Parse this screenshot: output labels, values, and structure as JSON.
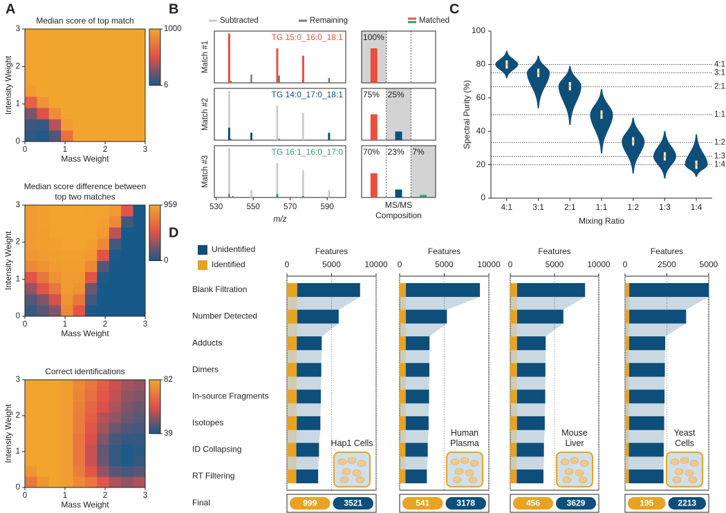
{
  "chart_data": [
    {
      "type": "heatmap",
      "panel": "A",
      "title": "Median score of top match",
      "xlabel": "Mass Weight",
      "ylabel": "Intensity Weight",
      "xlim": [
        0,
        3
      ],
      "ylim": [
        0,
        3
      ],
      "xticks": [
        0,
        1,
        2,
        3
      ],
      "yticks": [
        0,
        1,
        2,
        3
      ],
      "clim": [
        6,
        1000
      ],
      "cticks": [
        6,
        1000
      ],
      "colormap": [
        "#175a8a",
        "#e0504a",
        "#f2a52e"
      ],
      "z": [
        [
          60,
          30,
          150,
          700,
          1000,
          1000,
          1000,
          1000,
          1000,
          1000
        ],
        [
          100,
          80,
          400,
          950,
          1000,
          1000,
          1000,
          1000,
          1000,
          1000
        ],
        [
          250,
          500,
          850,
          1000,
          1000,
          1000,
          1000,
          1000,
          1000,
          1000
        ],
        [
          600,
          900,
          1000,
          1000,
          1000,
          1000,
          1000,
          1000,
          1000,
          1000
        ],
        [
          950,
          1000,
          1000,
          1000,
          1000,
          1000,
          1000,
          1000,
          1000,
          1000
        ],
        [
          1000,
          1000,
          1000,
          1000,
          1000,
          1000,
          1000,
          1000,
          1000,
          1000
        ],
        [
          1000,
          1000,
          1000,
          1000,
          1000,
          1000,
          1000,
          1000,
          1000,
          1000
        ],
        [
          1000,
          1000,
          1000,
          1000,
          1000,
          1000,
          1000,
          1000,
          1000,
          1000
        ],
        [
          1000,
          1000,
          1000,
          1000,
          1000,
          1000,
          1000,
          1000,
          1000,
          1000
        ],
        [
          1000,
          1000,
          1000,
          1000,
          1000,
          1000,
          1000,
          1000,
          1000,
          1000
        ]
      ]
    },
    {
      "type": "heatmap",
      "title": "Median score difference between top two matches",
      "xlabel": "Mass Weight",
      "ylabel": "Intensity Weight",
      "xlim": [
        0,
        3
      ],
      "ylim": [
        0,
        3
      ],
      "xticks": [
        0,
        1,
        2,
        3
      ],
      "yticks": [
        0,
        1,
        2,
        3
      ],
      "clim": [
        0,
        959
      ],
      "cticks": [
        0,
        959
      ],
      "colormap": [
        "#175a8a",
        "#e0504a",
        "#f2a52e"
      ],
      "z": [
        [
          80,
          150,
          250,
          800,
          500,
          20,
          0,
          0,
          0,
          0
        ],
        [
          150,
          250,
          450,
          850,
          700,
          100,
          0,
          0,
          0,
          0
        ],
        [
          300,
          500,
          700,
          900,
          850,
          200,
          0,
          0,
          0,
          0
        ],
        [
          500,
          700,
          850,
          900,
          900,
          500,
          20,
          0,
          0,
          0
        ],
        [
          800,
          850,
          900,
          920,
          920,
          800,
          150,
          0,
          0,
          0
        ],
        [
          880,
          900,
          920,
          930,
          930,
          900,
          500,
          10,
          0,
          0
        ],
        [
          900,
          920,
          930,
          940,
          940,
          930,
          800,
          100,
          0,
          0
        ],
        [
          900,
          920,
          940,
          950,
          950,
          940,
          900,
          400,
          0,
          0
        ],
        [
          900,
          930,
          940,
          950,
          950,
          950,
          930,
          800,
          100,
          0
        ],
        [
          900,
          930,
          940,
          950,
          959,
          950,
          950,
          900,
          500,
          0
        ]
      ]
    },
    {
      "type": "heatmap",
      "title": "Correct identifications",
      "xlabel": "Mass Weight",
      "ylabel": "Intensity Weight",
      "xlim": [
        0,
        3
      ],
      "ylim": [
        0,
        3
      ],
      "xticks": [
        0,
        1,
        2,
        3
      ],
      "yticks": [
        0,
        1,
        2,
        3
      ],
      "clim": [
        39,
        82
      ],
      "cticks": [
        39,
        82
      ],
      "colormap": [
        "#175a8a",
        "#e0504a",
        "#f2a52e"
      ],
      "z": [
        [
          70,
          78,
          82,
          80,
          75,
          70,
          62,
          55,
          52,
          55
        ],
        [
          78,
          82,
          82,
          80,
          72,
          62,
          52,
          46,
          44,
          46
        ],
        [
          82,
          82,
          82,
          80,
          70,
          58,
          48,
          42,
          40,
          42
        ],
        [
          82,
          82,
          82,
          80,
          70,
          58,
          47,
          42,
          40,
          41
        ],
        [
          82,
          82,
          82,
          80,
          70,
          60,
          50,
          44,
          42,
          42
        ],
        [
          82,
          82,
          82,
          80,
          72,
          62,
          54,
          48,
          45,
          44
        ],
        [
          82,
          82,
          82,
          80,
          72,
          64,
          56,
          52,
          48,
          46
        ],
        [
          82,
          82,
          82,
          80,
          73,
          66,
          60,
          55,
          50,
          48
        ],
        [
          82,
          82,
          82,
          80,
          74,
          68,
          62,
          57,
          52,
          50
        ],
        [
          82,
          82,
          82,
          80,
          75,
          70,
          64,
          58,
          54,
          52
        ]
      ]
    },
    {
      "type": "spectrum",
      "panel": "B",
      "xlabel": "m/z",
      "xlim": [
        529,
        600
      ],
      "xticks": [
        530,
        550,
        570,
        590
      ],
      "ylim": [
        0,
        105
      ],
      "legend": [
        {
          "name": "Subtracted",
          "color": "#c8c8c8"
        },
        {
          "name": "Remaining",
          "color": "#7a7a7a"
        },
        {
          "name": "Matched",
          "colors": [
            "#e8503f",
            "#2e9a6e"
          ]
        }
      ],
      "composition_label": "MS/MS Composition",
      "composition_ylim": [
        0,
        150
      ],
      "matches": [
        {
          "label": "Match #1",
          "name": "TG 15:0_16:0_18:1",
          "color": "#e8503f",
          "remaining": {
            "x": [
              538,
              549,
              564,
              591
            ],
            "y": [
              4,
              17,
              15,
              10
            ]
          },
          "matched": {
            "x": [
              537,
              563,
              577
            ],
            "y": [
              100,
              70,
              55
            ]
          },
          "composition": {
            "values": [
              100
            ],
            "value_labels": [
              "100%"
            ],
            "colors": [
              "#e8503f"
            ]
          }
        },
        {
          "label": "Match #2",
          "name": "TG 14:0_17:0_18:1",
          "color": "#0e4f79",
          "subtracted": {
            "x": [
              537,
              563,
              577
            ],
            "y": [
              100,
              70,
              55
            ]
          },
          "remaining": {
            "x": [
              538,
              564
            ],
            "y": [
              3,
              3
            ]
          },
          "matched": {
            "x": [
              537,
              549,
              591
            ],
            "y": [
              25,
              15,
              15
            ]
          },
          "composition": {
            "values": [
              75,
              25
            ],
            "value_labels": [
              "75%",
              "25%"
            ],
            "colors": [
              "#e8503f",
              "#0e4f79"
            ]
          }
        },
        {
          "label": "Match #3",
          "name": "TG 16:1_16:0_17:0",
          "color": "#2e9a6e",
          "subtracted": {
            "x": [
              537,
              549,
              563,
              577,
              591
            ],
            "y": [
              100,
              15,
              70,
              55,
              15
            ]
          },
          "remaining": {
            "x": [
              537,
              539
            ],
            "y": [
              8,
              3
            ]
          },
          "matched": {
            "x": [
              563,
              577
            ],
            "y": [
              7,
              3
            ]
          },
          "composition": {
            "values": [
              70,
              23,
              7
            ],
            "value_labels": [
              "70%",
              "23%",
              "7%"
            ],
            "colors": [
              "#e8503f",
              "#0e4f79",
              "#2e9a6e"
            ]
          }
        }
      ]
    },
    {
      "type": "violin",
      "panel": "C",
      "ylabel": "Spectral Purity (%)",
      "xlabel": "Mixing Ratio",
      "categories": [
        "4:1",
        "3:1",
        "2:1",
        "1:1",
        "1:2",
        "1:3",
        "1:4"
      ],
      "medians": [
        80,
        75,
        67,
        50,
        34,
        25,
        20
      ],
      "mins": [
        72,
        54,
        44,
        27,
        15,
        12,
        13
      ],
      "maxs": [
        88,
        85,
        79,
        65,
        48,
        40,
        38
      ],
      "ylim": [
        0,
        100
      ],
      "yticks": [
        0,
        20,
        40,
        60,
        80,
        100
      ],
      "color": "#0e4f79",
      "median_color": "#f5c242",
      "ref_lines": [
        {
          "value": 80,
          "label": "4:1"
        },
        {
          "value": 75,
          "label": "3:1"
        },
        {
          "value": 66.7,
          "label": "2:1"
        },
        {
          "value": 50,
          "label": "1:1"
        },
        {
          "value": 33.3,
          "label": "1:2"
        },
        {
          "value": 25,
          "label": "1:3"
        },
        {
          "value": 20,
          "label": "1:4"
        }
      ]
    },
    {
      "type": "bar",
      "panel": "D",
      "orientation": "horizontal",
      "stacked": true,
      "grid": true,
      "categories": [
        "Blank Filtration",
        "Number Detected",
        "Adducts",
        "Dimers",
        "In-source Fragments",
        "Isotopes",
        "ID Collapsing",
        "RT Filtering"
      ],
      "series": [
        {
          "name": "Unidentified",
          "color": "#0d4f7a"
        },
        {
          "name": "Identified",
          "color": "#e8a322"
        }
      ],
      "final_label": "Final",
      "subplots": [
        {
          "xlabel": "Features",
          "sample": "Hap1 Cells",
          "xlim": [
            0,
            10000
          ],
          "xticks": [
            0,
            5000,
            10000
          ],
          "values": [
            [
              7050,
              4650,
              2800,
              2750,
              2700,
              2650,
              2550,
              2450
            ],
            [
              1150,
              1150,
              1100,
              1100,
              1100,
              1100,
              1050,
              1050
            ]
          ],
          "final": [
            999,
            3521
          ]
        },
        {
          "xlabel": "Features",
          "sample": "Human Plasma",
          "xlim": [
            0,
            10000
          ],
          "xticks": [
            0,
            5000,
            10000
          ],
          "values": [
            [
              8300,
              4600,
              2670,
              2650,
              2620,
              2570,
              2500,
              2400
            ],
            [
              700,
              700,
              680,
              680,
              680,
              680,
              650,
              650
            ]
          ],
          "final": [
            541,
            3178
          ]
        },
        {
          "xlabel": "Features",
          "sample": "Mouse Liver",
          "xlim": [
            0,
            10000
          ],
          "xticks": [
            0,
            5000,
            10000
          ],
          "values": [
            [
              7670,
              5220,
              3240,
              3210,
              3190,
              3140,
              3070,
              3020
            ],
            [
              780,
              780,
              760,
              760,
              760,
              760,
              730,
              730
            ]
          ],
          "final": [
            456,
            3629
          ]
        },
        {
          "xlabel": "Features",
          "sample": "Yeast Cells",
          "xlim": [
            0,
            5000
          ],
          "xticks": [
            0,
            2500,
            5000
          ],
          "values": [
            [
              4750,
              3400,
              2160,
              2140,
              2120,
              2100,
              2080,
              2070
            ],
            [
              250,
              250,
              240,
              240,
              240,
              240,
              230,
              230
            ]
          ],
          "final": [
            195,
            2213
          ]
        }
      ]
    }
  ]
}
